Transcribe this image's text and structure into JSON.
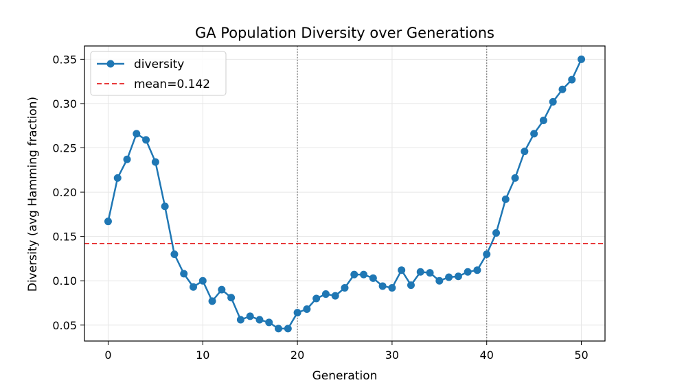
{
  "chart_data": {
    "type": "line",
    "title": "GA Population Diversity over Generations",
    "xlabel": "Generation",
    "ylabel": "Diversity (avg Hamming fraction)",
    "xlim": [
      -2.5,
      52.5
    ],
    "ylim": [
      0.032,
      0.365
    ],
    "xticks": [
      0,
      10,
      20,
      30,
      40,
      50
    ],
    "yticks": [
      0.05,
      0.1,
      0.15,
      0.2,
      0.25,
      0.3,
      0.35
    ],
    "grid": true,
    "legend_position": "top-left",
    "series": [
      {
        "name": "diversity",
        "color": "#1f77b4",
        "marker": "circle",
        "x": [
          0,
          1,
          2,
          3,
          4,
          5,
          6,
          7,
          8,
          9,
          10,
          11,
          12,
          13,
          14,
          15,
          16,
          17,
          18,
          19,
          20,
          21,
          22,
          23,
          24,
          25,
          26,
          27,
          28,
          29,
          30,
          31,
          32,
          33,
          34,
          35,
          36,
          37,
          38,
          39,
          40,
          41,
          42,
          43,
          44,
          45,
          46,
          47,
          48,
          49,
          50
        ],
        "y": [
          0.167,
          0.216,
          0.237,
          0.266,
          0.259,
          0.234,
          0.184,
          0.13,
          0.108,
          0.093,
          0.1,
          0.077,
          0.09,
          0.081,
          0.056,
          0.06,
          0.056,
          0.053,
          0.046,
          0.046,
          0.064,
          0.068,
          0.08,
          0.085,
          0.083,
          0.092,
          0.107,
          0.107,
          0.103,
          0.094,
          0.092,
          0.112,
          0.095,
          0.11,
          0.109,
          0.1,
          0.104,
          0.105,
          0.11,
          0.112,
          0.13,
          0.154,
          0.192,
          0.216,
          0.246,
          0.266,
          0.281,
          0.302,
          0.316,
          0.327,
          0.35
        ]
      }
    ],
    "mean_line": {
      "name": "mean=0.142",
      "value": 0.142,
      "color": "#e8393a"
    },
    "vertical_markers": [
      20,
      40
    ]
  }
}
